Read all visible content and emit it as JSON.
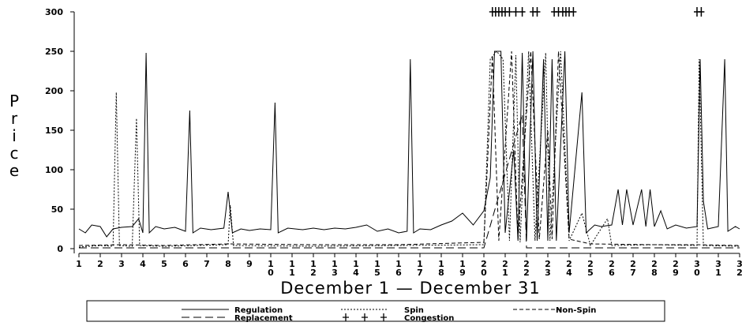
{
  "chart_data": {
    "type": "line",
    "xlabel": "December 1 — December 31",
    "ylabel": "Price",
    "ylim": [
      0,
      300
    ],
    "xlim": [
      1,
      32
    ],
    "yticks": [
      0,
      50,
      100,
      150,
      200,
      250,
      300
    ],
    "xtick_labels": [
      "1",
      "2",
      "3",
      "4",
      "5",
      "6",
      "7",
      "8",
      "9",
      "10",
      "11",
      "12",
      "13",
      "14",
      "15",
      "16",
      "17",
      "18",
      "19",
      "20",
      "21",
      "22",
      "23",
      "24",
      "25",
      "26",
      "27",
      "28",
      "29",
      "30",
      "31",
      "32"
    ],
    "legend_placement": "bottom",
    "series": [
      {
        "name": "Regulation",
        "style": "solid",
        "points": [
          [
            1,
            25
          ],
          [
            1.3,
            20
          ],
          [
            1.6,
            30
          ],
          [
            2,
            28
          ],
          [
            2.3,
            15
          ],
          [
            2.6,
            25
          ],
          [
            3,
            27
          ],
          [
            3.5,
            28
          ],
          [
            3.8,
            38
          ],
          [
            4,
            20
          ],
          [
            4.15,
            248
          ],
          [
            4.3,
            20
          ],
          [
            4.6,
            28
          ],
          [
            5,
            25
          ],
          [
            5.5,
            27
          ],
          [
            6,
            22
          ],
          [
            6.2,
            175
          ],
          [
            6.35,
            20
          ],
          [
            6.7,
            26
          ],
          [
            7.2,
            24
          ],
          [
            7.8,
            26
          ],
          [
            8,
            72
          ],
          [
            8.2,
            20
          ],
          [
            8.6,
            25
          ],
          [
            9,
            23
          ],
          [
            9.5,
            25
          ],
          [
            10,
            24
          ],
          [
            10.2,
            185
          ],
          [
            10.35,
            20
          ],
          [
            10.8,
            26
          ],
          [
            11.5,
            24
          ],
          [
            12,
            26
          ],
          [
            12.5,
            24
          ],
          [
            13,
            26
          ],
          [
            13.5,
            25
          ],
          [
            14,
            27
          ],
          [
            14.5,
            30
          ],
          [
            15,
            22
          ],
          [
            15.5,
            25
          ],
          [
            16,
            20
          ],
          [
            16.4,
            22
          ],
          [
            16.55,
            240
          ],
          [
            16.7,
            20
          ],
          [
            17,
            25
          ],
          [
            17.5,
            24
          ],
          [
            18,
            30
          ],
          [
            18.5,
            35
          ],
          [
            19,
            45
          ],
          [
            19.5,
            30
          ],
          [
            20,
            48
          ],
          [
            20.3,
            90
          ],
          [
            20.5,
            250
          ],
          [
            20.8,
            250
          ],
          [
            21,
            20
          ],
          [
            21.4,
            125
          ],
          [
            21.6,
            10
          ],
          [
            21.8,
            248
          ],
          [
            22,
            10
          ],
          [
            22.3,
            250
          ],
          [
            22.5,
            10
          ],
          [
            22.8,
            240
          ],
          [
            23,
            10
          ],
          [
            23.2,
            240
          ],
          [
            23.4,
            10
          ],
          [
            23.8,
            250
          ],
          [
            24,
            20
          ],
          [
            24.6,
            198
          ],
          [
            24.8,
            20
          ],
          [
            25.2,
            30
          ],
          [
            25.5,
            28
          ],
          [
            26,
            30
          ],
          [
            26.3,
            75
          ],
          [
            26.5,
            30
          ],
          [
            26.7,
            75
          ],
          [
            27,
            30
          ],
          [
            27.4,
            75
          ],
          [
            27.6,
            28
          ],
          [
            27.8,
            75
          ],
          [
            28,
            28
          ],
          [
            28.3,
            48
          ],
          [
            28.6,
            25
          ],
          [
            29,
            30
          ],
          [
            29.5,
            26
          ],
          [
            30,
            28
          ],
          [
            30.15,
            240
          ],
          [
            30.3,
            60
          ],
          [
            30.5,
            25
          ],
          [
            31,
            28
          ],
          [
            31.3,
            240
          ],
          [
            31.45,
            22
          ],
          [
            31.8,
            28
          ],
          [
            32,
            25
          ]
        ]
      },
      {
        "name": "Spin",
        "style": "dotted",
        "points": [
          [
            1,
            2
          ],
          [
            2,
            4
          ],
          [
            2.6,
            3
          ],
          [
            2.75,
            198
          ],
          [
            2.9,
            4
          ],
          [
            3.5,
            3
          ],
          [
            3.7,
            165
          ],
          [
            3.85,
            4
          ],
          [
            5,
            3
          ],
          [
            8,
            5
          ],
          [
            8.1,
            55
          ],
          [
            8.25,
            4
          ],
          [
            12,
            3
          ],
          [
            16,
            4
          ],
          [
            20,
            5
          ],
          [
            20.3,
            240
          ],
          [
            20.6,
            250
          ],
          [
            20.9,
            240
          ],
          [
            21.2,
            10
          ],
          [
            21.5,
            245
          ],
          [
            21.7,
            8
          ],
          [
            22.1,
            250
          ],
          [
            22.4,
            10
          ],
          [
            22.9,
            248
          ],
          [
            23.1,
            10
          ],
          [
            23.6,
            250
          ],
          [
            24,
            10
          ],
          [
            24.6,
            45
          ],
          [
            25,
            4
          ],
          [
            25.8,
            38
          ],
          [
            26,
            4
          ],
          [
            28,
            5
          ],
          [
            30,
            4
          ],
          [
            30.1,
            240
          ],
          [
            30.3,
            4
          ],
          [
            32,
            3
          ]
        ]
      },
      {
        "name": "Non-Spin",
        "style": "dashed",
        "points": [
          [
            1,
            4
          ],
          [
            3,
            5
          ],
          [
            5,
            4
          ],
          [
            8,
            6
          ],
          [
            12,
            5
          ],
          [
            16,
            5
          ],
          [
            20,
            8
          ],
          [
            20.4,
            245
          ],
          [
            20.7,
            10
          ],
          [
            21.3,
            250
          ],
          [
            21.6,
            12
          ],
          [
            22.2,
            250
          ],
          [
            22.6,
            12
          ],
          [
            23,
            150
          ],
          [
            23.2,
            12
          ],
          [
            23.5,
            250
          ],
          [
            24,
            12
          ],
          [
            25,
            6
          ],
          [
            28,
            5
          ],
          [
            30,
            5
          ],
          [
            32,
            4
          ]
        ]
      },
      {
        "name": "Replacement",
        "style": "longdash",
        "points": [
          [
            1,
            1
          ],
          [
            6,
            1
          ],
          [
            12,
            1
          ],
          [
            18,
            1
          ],
          [
            20,
            1
          ],
          [
            21.8,
            170
          ],
          [
            22,
            1
          ],
          [
            25,
            1
          ],
          [
            32,
            1
          ]
        ]
      },
      {
        "name": "Congestion",
        "style": "plus",
        "points": [
          [
            20.4,
            300
          ],
          [
            20.55,
            300
          ],
          [
            20.7,
            300
          ],
          [
            20.85,
            300
          ],
          [
            21.0,
            300
          ],
          [
            21.2,
            300
          ],
          [
            21.5,
            300
          ],
          [
            21.8,
            300
          ],
          [
            22.3,
            300
          ],
          [
            22.5,
            300
          ],
          [
            23.3,
            300
          ],
          [
            23.5,
            300
          ],
          [
            23.7,
            300
          ],
          [
            23.85,
            300
          ],
          [
            24.0,
            300
          ],
          [
            24.2,
            300
          ],
          [
            30.0,
            300
          ],
          [
            30.2,
            300
          ]
        ]
      }
    ]
  }
}
